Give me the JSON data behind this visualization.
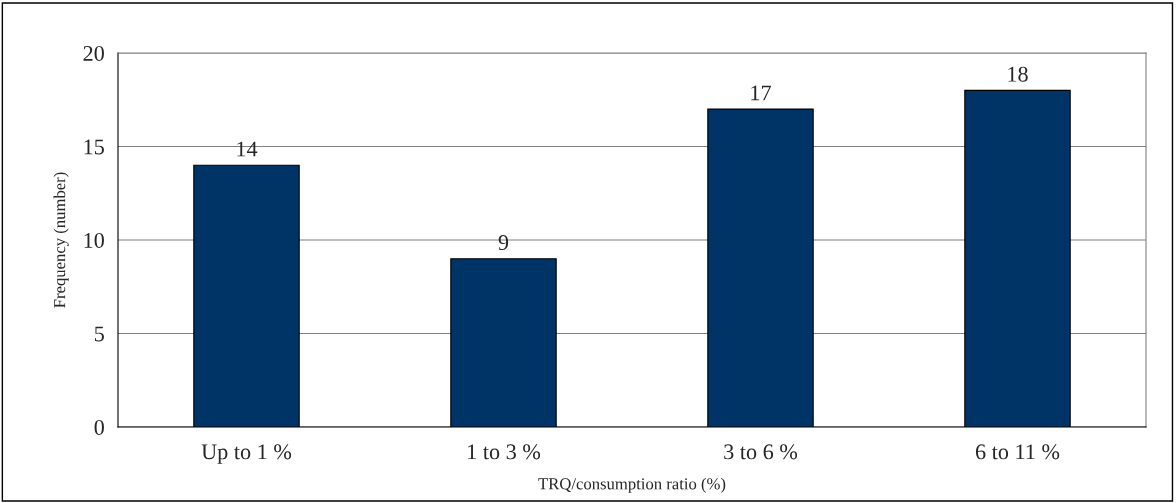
{
  "chart_data": {
    "type": "bar",
    "xlabel": "TRQ/consumption ratio (%)",
    "ylabel": "Frequency (number)",
    "categories": [
      "Up to 1 %",
      "1 to 3 %",
      "3 to 6 %",
      "6 to 11 %"
    ],
    "values": [
      14,
      9,
      17,
      18
    ],
    "color": "#003366",
    "ylim": [
      0,
      20
    ],
    "yticks": [
      0,
      5,
      10,
      15,
      20
    ],
    "grid": "y",
    "data_labels": true,
    "legend": false
  }
}
